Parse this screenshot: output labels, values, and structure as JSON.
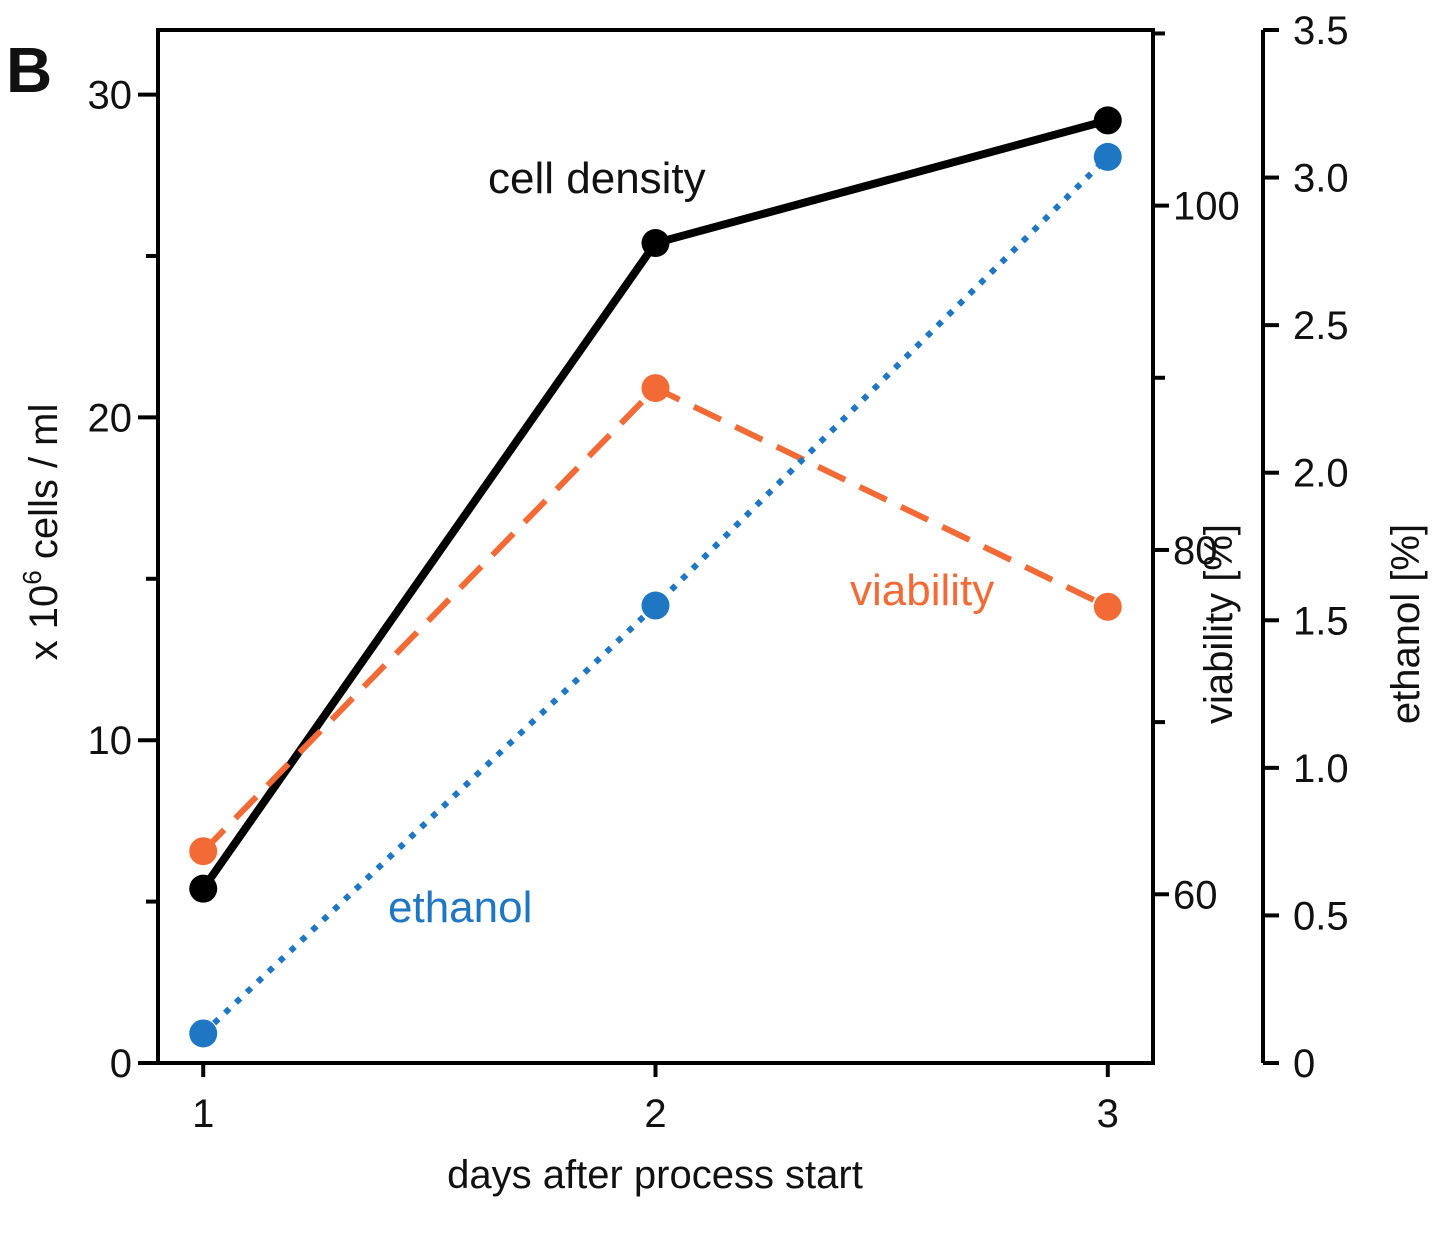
{
  "panel_label": "B",
  "chart_data": {
    "type": "line",
    "x": [
      1,
      2,
      3
    ],
    "xlabel": "days after process start",
    "xticks": [
      "1",
      "2",
      "3"
    ],
    "xlim": [
      0.9,
      3.1
    ],
    "axes": {
      "left": {
        "label_prefix": "x 10",
        "label_sup": "6",
        "label_suffix": " cells / ml",
        "ylim": [
          0,
          32
        ],
        "ticks": [
          0,
          10,
          20,
          30
        ],
        "minor_ticks": [
          5,
          15,
          25
        ],
        "tick_labels": [
          "0",
          "10",
          "20",
          "30"
        ]
      },
      "viability": {
        "label": "viability [%]",
        "ylim": [
          50.2,
          110.2
        ],
        "ticks": [
          60,
          80,
          100
        ],
        "minor_ticks": [
          55,
          65,
          75,
          85,
          95,
          105
        ],
        "tick_labels": [
          "60",
          "80",
          "100"
        ]
      },
      "ethanol": {
        "label": "ethanol [%]",
        "ylim": [
          0,
          3.5
        ],
        "ticks": [
          0,
          0.5,
          1.0,
          1.5,
          2.0,
          2.5,
          3.0,
          3.5
        ],
        "tick_labels": [
          "0",
          "0.5",
          "1.0",
          "1.5",
          "2.0",
          "2.5",
          "3.0",
          "3.5"
        ]
      }
    },
    "series": [
      {
        "name": "cell density",
        "axis": "left",
        "values": [
          5.4,
          25.4,
          29.2
        ],
        "color": "#000000",
        "style": "solid"
      },
      {
        "name": "viability",
        "axis": "viability",
        "values": [
          62.5,
          89.4,
          76.7
        ],
        "color": "#f26b36",
        "style": "dashed"
      },
      {
        "name": "ethanol",
        "axis": "ethanol",
        "values": [
          0.1,
          1.55,
          3.07
        ],
        "color": "#1f77c4",
        "style": "dotted"
      }
    ],
    "grid": false
  }
}
